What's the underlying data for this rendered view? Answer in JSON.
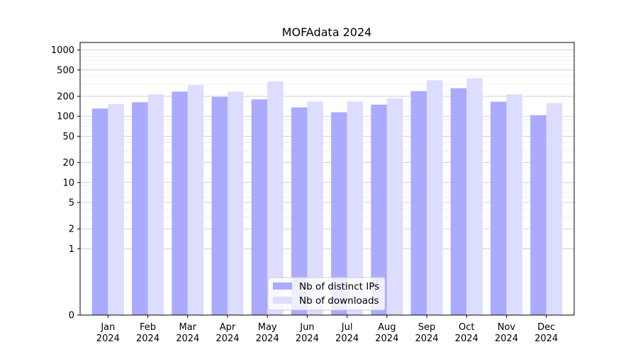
{
  "chart_data": {
    "type": "bar",
    "title": "MOFAdata 2024",
    "xlabel": "",
    "ylabel": "",
    "yscale": "symlog",
    "ylim": [
      0,
      1300
    ],
    "categories": [
      "Jan\n2024",
      "Feb\n2024",
      "Mar\n2024",
      "Apr\n2024",
      "May\n2024",
      "Jun\n2024",
      "Jul\n2024",
      "Aug\n2024",
      "Sep\n2024",
      "Oct\n2024",
      "Nov\n2024",
      "Dec\n2024"
    ],
    "yticks": [
      0,
      1,
      2,
      5,
      10,
      20,
      50,
      100,
      200,
      500,
      1000
    ],
    "ytick_labels": [
      "0",
      "1",
      "2",
      "5",
      "10",
      "20",
      "50",
      "100",
      "200",
      "500",
      "1000"
    ],
    "grid": true,
    "legend_position": "lower center",
    "series": [
      {
        "name": "Nb of distinct IPs",
        "color": "#aaaaff",
        "values": [
          131,
          163,
          236,
          196,
          180,
          136,
          115,
          150,
          240,
          265,
          166,
          104
        ]
      },
      {
        "name": "Nb of downloads",
        "color": "#ddddff",
        "values": [
          153,
          215,
          296,
          235,
          335,
          167,
          167,
          187,
          350,
          375,
          215,
          158
        ]
      }
    ]
  }
}
